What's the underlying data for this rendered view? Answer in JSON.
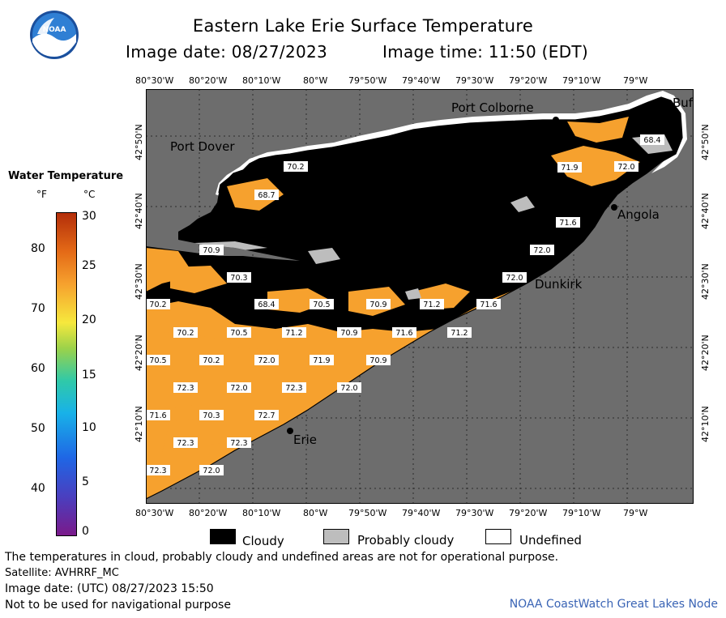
{
  "header": {
    "title": "Eastern Lake Erie Surface Temperature",
    "image_date": "Image date: 08/27/2023",
    "image_time": "Image time: 11:50 (EDT)",
    "logo_text": "NOAA"
  },
  "axes": {
    "lon_ticks": [
      "80°30'W",
      "80°20'W",
      "80°10'W",
      "80°W",
      "79°50'W",
      "79°40'W",
      "79°30'W",
      "79°20'W",
      "79°10'W",
      "79°W"
    ],
    "lat_ticks": [
      "42°50'N",
      "42°40'N",
      "42°30'N",
      "42°20'N",
      "42°10'N"
    ]
  },
  "legend": {
    "title": "Water Temperature",
    "unit_f": "°F",
    "unit_c": "°C",
    "f_ticks": [
      "80",
      "70",
      "60",
      "50",
      "40"
    ],
    "c_ticks": [
      "30",
      "25",
      "20",
      "15",
      "10",
      "5",
      "0"
    ]
  },
  "cities": [
    {
      "label": "Port Colborne"
    },
    {
      "label": "Port Dover"
    },
    {
      "label": "Buf"
    },
    {
      "label": "Angola"
    },
    {
      "label": "Dunkirk"
    },
    {
      "label": "Erie"
    }
  ],
  "temps": [
    "70.2",
    "68.7",
    "71.9",
    "72.0",
    "68.4",
    "71.6",
    "70.9",
    "72.0",
    "72.0",
    "70.3",
    "70.2",
    "68.4",
    "70.5",
    "70.9",
    "71.2",
    "71.6",
    "70.2",
    "70.5",
    "71.2",
    "70.9",
    "71.6",
    "71.2",
    "70.5",
    "70.2",
    "72.0",
    "71.9",
    "70.9",
    "72.3",
    "72.0",
    "72.3",
    "72.0",
    "71.6",
    "70.3",
    "72.7",
    "72.3",
    "72.3",
    "72.3",
    "72.0"
  ],
  "key": {
    "cloudy": "Cloudy",
    "probably_cloudy": "Probably cloudy",
    "undefined": "Undefined"
  },
  "footer": {
    "line1": "The temperatures in cloud, probably cloudy and undefined areas are not for operational purpose.",
    "line2": "Satellite: AVHRRF_MC",
    "line3": "Image date: (UTC) 08/27/2023  15:50",
    "line4": "Not to be used for navigational purpose",
    "credit": "NOAA CoastWatch Great Lakes Node"
  },
  "colors": {
    "land": "#6d6d6d",
    "cloud": "#000000",
    "water_warm": "#f6a12e",
    "probably_cloudy": "#bdbdbd",
    "undefined": "#ffffff",
    "credit": "#3a64b5"
  }
}
